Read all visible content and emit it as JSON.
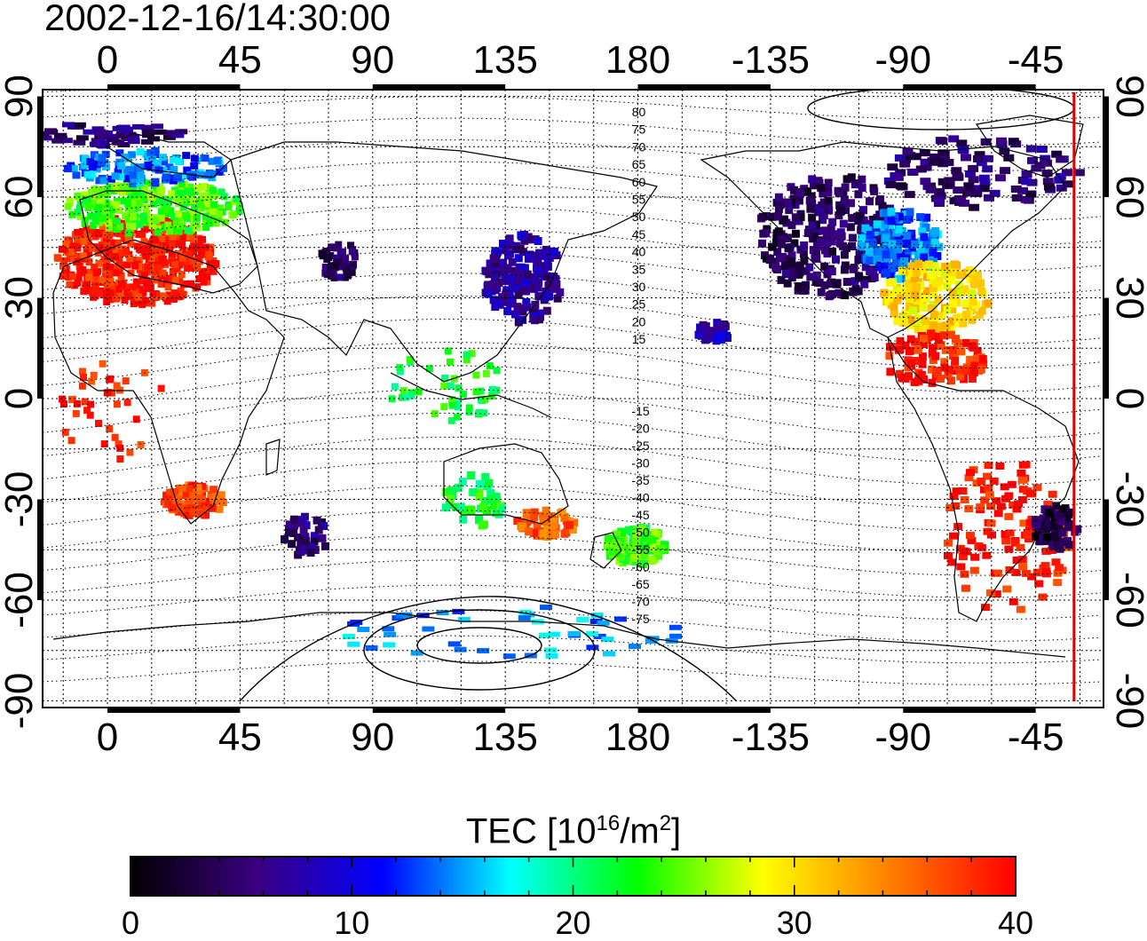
{
  "title": "2002-12-16/14:30:00",
  "map": {
    "projection": "equirectangular",
    "lon_range": [
      -22,
      338
    ],
    "lat_range": [
      -92,
      92
    ],
    "top_lon_ticks": [
      "0",
      "45",
      "90",
      "135",
      "180",
      "-135",
      "-90",
      "-45"
    ],
    "bottom_lon_ticks": [
      "0",
      "45",
      "90",
      "135",
      "180",
      "-135",
      "-90",
      "-45"
    ],
    "left_lat_ticks": [
      "90",
      "60",
      "30",
      "0",
      "-30",
      "-60",
      "-90"
    ],
    "right_lat_ticks": [
      "90",
      "60",
      "30",
      "0",
      "-30",
      "-60",
      "-90"
    ],
    "grid": "dotted, 15-degree",
    "terminator_longitude": -32,
    "terminator_color": "#e00000",
    "contour_labels_north": [
      "80",
      "75",
      "70",
      "65",
      "60",
      "55",
      "50",
      "45",
      "40",
      "35",
      "30",
      "25",
      "20",
      "15"
    ],
    "contour_labels_south": [
      "-15",
      "-20",
      "-25",
      "-30",
      "-35",
      "-40",
      "-45",
      "-50",
      "-55",
      "-60",
      "-65",
      "-70",
      "-75"
    ]
  },
  "colorbar": {
    "title_prefix": "TEC  [10",
    "title_sup1": "16",
    "title_mid": "/m",
    "title_sup2": "2",
    "title_suffix": "]",
    "min": 0,
    "max": 40,
    "ticks": [
      "0",
      "10",
      "20",
      "30",
      "40"
    ],
    "colormap": [
      "#000000",
      "#3a0080",
      "#0000ff",
      "#00ffff",
      "#00ff00",
      "#ffff00",
      "#ff8000",
      "#ff0000"
    ]
  }
}
